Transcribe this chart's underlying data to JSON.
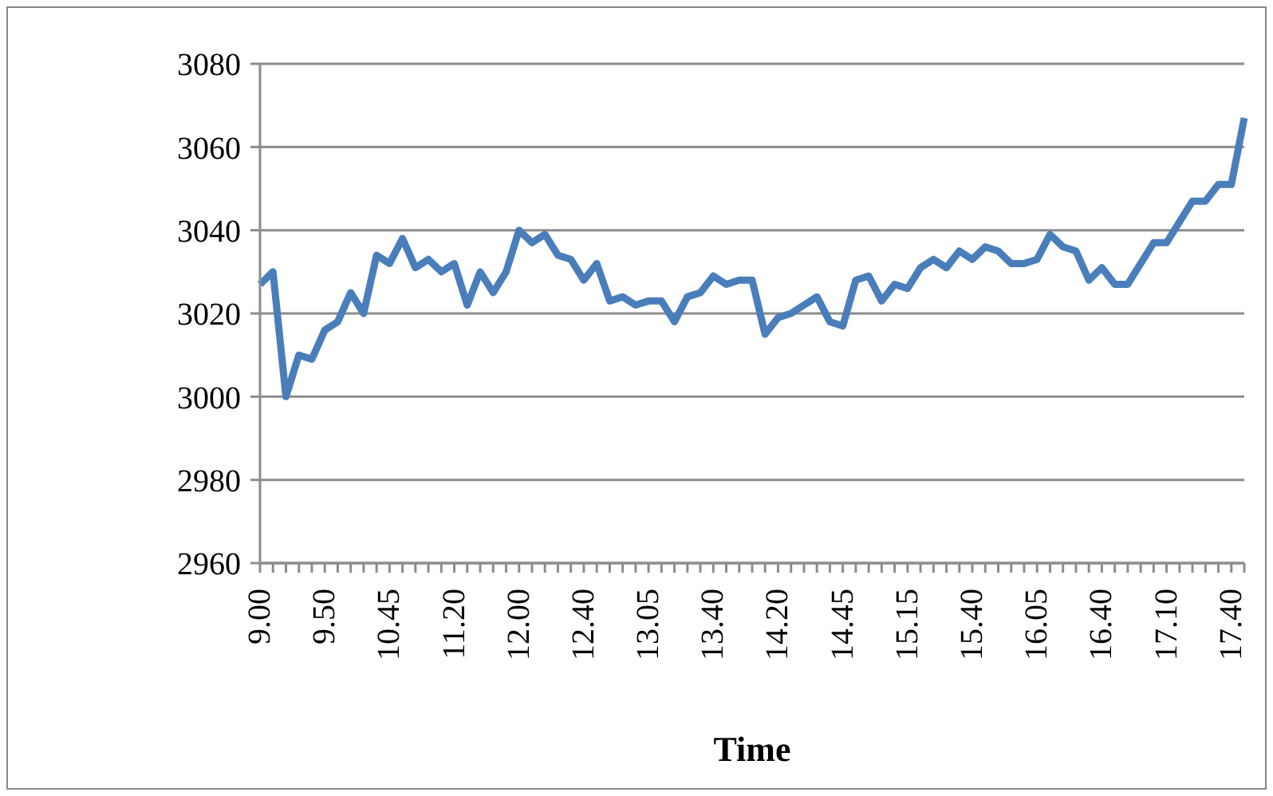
{
  "chart_data": {
    "type": "line",
    "xlabel": "Time",
    "categories": [
      "9.00",
      null,
      null,
      null,
      null,
      "9.50",
      null,
      null,
      null,
      null,
      "10.45",
      null,
      null,
      null,
      null,
      "11.20",
      null,
      null,
      null,
      null,
      "12.00",
      null,
      null,
      null,
      null,
      "12.40",
      null,
      null,
      null,
      null,
      "13.05",
      null,
      null,
      null,
      null,
      "13.40",
      null,
      null,
      null,
      null,
      "14.20",
      null,
      null,
      null,
      null,
      "14.45",
      null,
      null,
      null,
      null,
      "15.15",
      null,
      null,
      null,
      null,
      "15.40",
      null,
      null,
      null,
      null,
      "16.05",
      null,
      null,
      null,
      null,
      "16.40",
      null,
      null,
      null,
      null,
      "17.10",
      null,
      null,
      null,
      null,
      "17.40",
      null
    ],
    "series": [
      {
        "color": "#4a7ebb",
        "values": [
          3027,
          3030,
          3000,
          3010,
          3009,
          3016,
          3018,
          3025,
          3020,
          3034,
          3032,
          3038,
          3031,
          3033,
          3030,
          3032,
          3022,
          3030,
          3025,
          3030,
          3040,
          3037,
          3039,
          3034,
          3033,
          3028,
          3032,
          3023,
          3024,
          3022,
          3023,
          3023,
          3018,
          3024,
          3025,
          3029,
          3027,
          3028,
          3028,
          3015,
          3019,
          3020,
          3022,
          3024,
          3018,
          3017,
          3028,
          3029,
          3023,
          3027,
          3026,
          3031,
          3033,
          3031,
          3035,
          3033,
          3036,
          3035,
          3032,
          3032,
          3033,
          3039,
          3036,
          3035,
          3028,
          3031,
          3027,
          3027,
          3032,
          3037,
          3037,
          3042,
          3047,
          3047,
          3051,
          3051,
          3067
        ]
      }
    ],
    "ylim": [
      2960,
      3080
    ],
    "yticks": [
      2960,
      2980,
      3000,
      3020,
      3040,
      3060,
      3080
    ],
    "grid": "y",
    "legend": false,
    "marker": "none",
    "line_style": "solid"
  }
}
